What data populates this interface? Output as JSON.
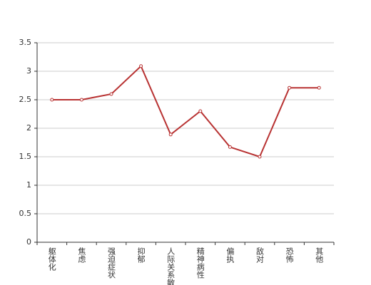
{
  "chart_data": {
    "type": "line",
    "categories": [
      "躯体化",
      "焦虑",
      "强迫症状",
      "抑郁",
      "人际关系敏感",
      "精神病性",
      "偏执",
      "敌对",
      "恐怖",
      "其他"
    ],
    "values": [
      2.5,
      2.5,
      2.6,
      3.09,
      1.89,
      2.3,
      1.67,
      1.5,
      2.71,
      2.71
    ],
    "color": "#b83232",
    "ylim": [
      0,
      3.5
    ],
    "yticks": [
      0,
      0.5,
      1,
      1.5,
      2,
      2.5,
      3,
      3.5
    ],
    "grid": true
  }
}
